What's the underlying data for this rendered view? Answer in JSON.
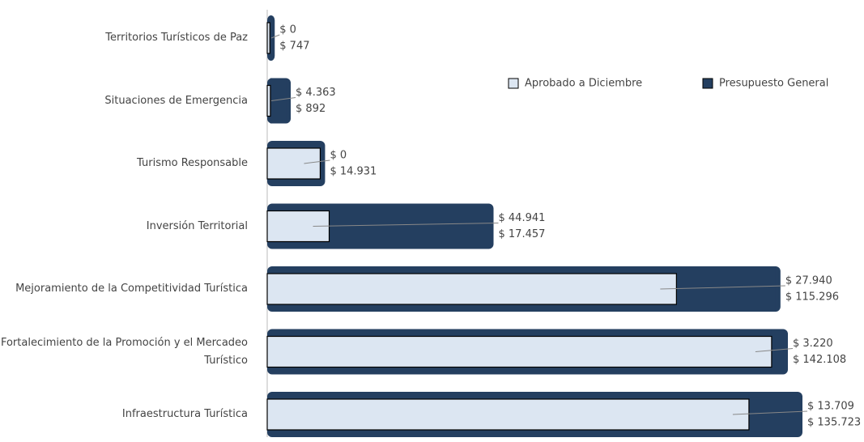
{
  "chart_data": {
    "type": "stacked-barh",
    "categories": [
      "Territorios Turísticos de Paz",
      "Situaciones de Emergencia",
      "Turismo Responsable",
      "Inversión Territorial",
      "Mejoramiento de la Competitividad Turística",
      "Fortalecimiento de la Promoción y el Mercadeo Turístico",
      "Infraestructura Turística"
    ],
    "series": [
      {
        "name": "Aprobado a Diciembre",
        "color": "#dce6f2",
        "values": [
          747,
          892,
          14931,
          17457,
          115296,
          142108,
          135723
        ],
        "value_labels": [
          "$ 747",
          "$ 892",
          "$ 14.931",
          "$ 17.457",
          "$ 115.296",
          "$ 142.108",
          "$ 135.723"
        ]
      },
      {
        "name": "Presupuesto General",
        "color": "#243f60",
        "values": [
          0,
          4363,
          0,
          44941,
          27940,
          3220,
          13709
        ],
        "value_labels": [
          "$ 0",
          "$ 4.363",
          "$ 0",
          "$ 44.941",
          "$ 27.940",
          "$ 3.220",
          "$ 13.709"
        ]
      }
    ],
    "legend": "top-right"
  }
}
